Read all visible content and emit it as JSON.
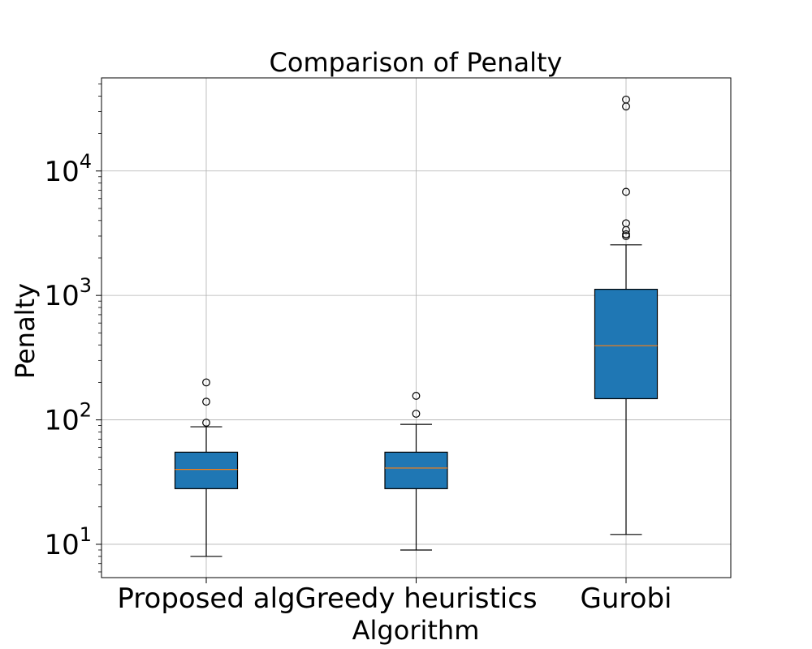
{
  "chart_data": {
    "type": "box",
    "title": "Comparison of Penalty",
    "xlabel": "Algorithm",
    "ylabel": "Penalty",
    "yscale": "log",
    "ylim": [
      5.4,
      56000
    ],
    "grid": true,
    "box_color": "#1f77b4",
    "median_color": "#ff7f0e",
    "y_ticks": [
      {
        "value": 10,
        "base": "10",
        "exp": "1"
      },
      {
        "value": 100,
        "base": "10",
        "exp": "2"
      },
      {
        "value": 1000,
        "base": "10",
        "exp": "3"
      },
      {
        "value": 10000,
        "base": "10",
        "exp": "4"
      }
    ],
    "categories": [
      "Proposed alg",
      "Greedy heuristics",
      "Gurobi"
    ],
    "boxes": [
      {
        "whisker_low": 8,
        "q1": 28,
        "median": 40,
        "q3": 55,
        "whisker_high": 88,
        "outliers": [
          95,
          140,
          200
        ]
      },
      {
        "whisker_low": 9,
        "q1": 28,
        "median": 41,
        "q3": 55,
        "whisker_high": 92,
        "outliers": [
          112,
          156
        ]
      },
      {
        "whisker_low": 12,
        "q1": 148,
        "median": 395,
        "q3": 1120,
        "whisker_high": 2550,
        "outliers": [
          3000,
          3100,
          3350,
          3800,
          6800,
          33000,
          37500
        ]
      }
    ]
  }
}
